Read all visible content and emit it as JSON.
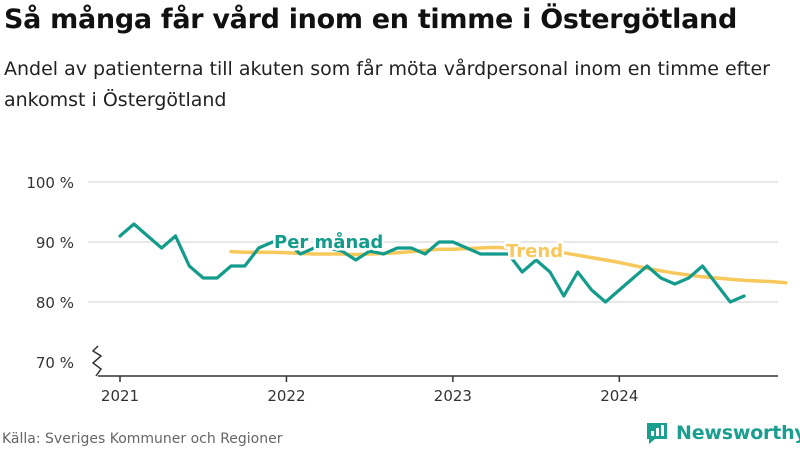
{
  "header": {
    "title": "Så många får vård inom en timme i Östergötland",
    "subtitle": "Andel av patienterna till akuten som får möta vårdpersonal inom en timme efter ankomst i Östergötland"
  },
  "footer": {
    "source": "Källa: Sveriges Kommuner och Regioner",
    "brand": "Newsworthy"
  },
  "colors": {
    "monthly": "#139b8c",
    "trend": "#f7c85c",
    "grid": "#d0d0d0",
    "axis": "#333333",
    "brand": "#1a9e8f"
  },
  "chart_data": {
    "type": "line",
    "title": "Så många får vård inom en timme i Östergötland",
    "xlabel": "",
    "ylabel": "",
    "ylim": [
      70,
      100
    ],
    "y_axis_break": true,
    "yticks": [
      100,
      90,
      80,
      70
    ],
    "ytick_labels": [
      "100 %",
      "90 %",
      "80 %",
      "70 %"
    ],
    "xticks": [
      "2021",
      "2022",
      "2023",
      "2024"
    ],
    "grid": true,
    "series": [
      {
        "name": "Per månad",
        "start": "2021-01",
        "values": [
          91,
          93,
          91,
          89,
          91,
          86,
          84,
          84,
          86,
          86,
          89,
          90,
          90,
          88,
          89,
          89,
          88.5,
          87,
          88.5,
          88,
          89,
          89,
          88,
          90,
          90,
          89,
          88,
          88,
          88,
          85,
          87,
          85,
          81,
          85,
          82,
          80,
          82,
          84,
          86,
          84,
          83,
          84,
          86,
          83,
          80,
          81
        ]
      },
      {
        "name": "Trend",
        "start": "2021-09",
        "values": [
          88.4,
          88.3,
          88.3,
          88.3,
          88.2,
          88.1,
          88,
          88,
          88,
          87.9,
          88,
          88.1,
          88.2,
          88.4,
          88.6,
          88.8,
          88.8,
          88.9,
          89,
          89.1,
          89,
          88.9,
          88.8,
          88.6,
          88.2,
          87.8,
          87.4,
          87,
          86.6,
          86.1,
          85.6,
          85.2,
          84.8,
          84.5,
          84.2,
          84,
          83.8,
          83.6,
          83.5,
          83.4,
          83.2
        ]
      }
    ]
  }
}
